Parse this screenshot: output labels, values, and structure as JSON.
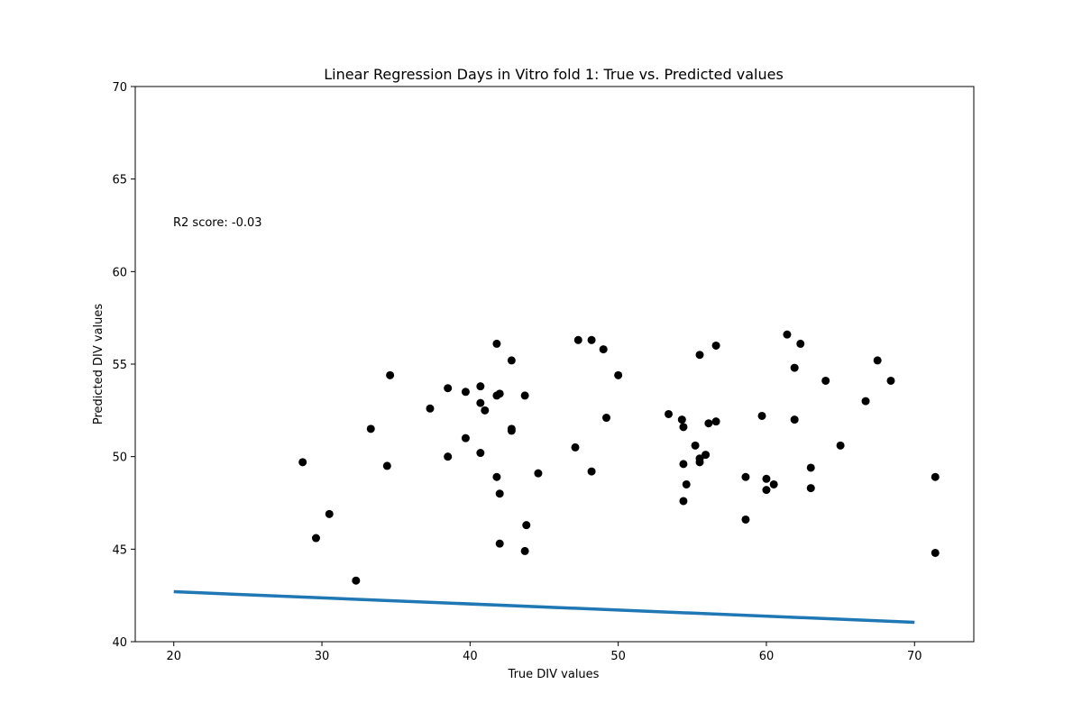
{
  "chart_data": {
    "type": "scatter",
    "title": "Linear Regression Days in Vitro fold 1: True vs. Predicted values",
    "xlabel": "True DIV values",
    "ylabel": "Predicted DIV values",
    "xlim": [
      17.4,
      74.0
    ],
    "ylim": [
      40,
      70
    ],
    "xticks": [
      "20",
      "30",
      "40",
      "50",
      "60",
      "70"
    ],
    "yticks": [
      "40",
      "45",
      "50",
      "55",
      "60",
      "65",
      "70"
    ],
    "grid": false,
    "annotation": "R2 score: -0.03",
    "point_color": "#000000",
    "line_color": "#1f77b4",
    "points": [
      [
        28.7,
        49.7
      ],
      [
        29.6,
        45.6
      ],
      [
        30.5,
        46.9
      ],
      [
        32.3,
        43.3
      ],
      [
        33.3,
        51.5
      ],
      [
        34.4,
        49.5
      ],
      [
        34.6,
        54.4
      ],
      [
        37.3,
        52.6
      ],
      [
        38.5,
        53.7
      ],
      [
        38.5,
        50.0
      ],
      [
        39.7,
        53.5
      ],
      [
        39.7,
        51.0
      ],
      [
        40.7,
        53.8
      ],
      [
        40.7,
        52.9
      ],
      [
        40.7,
        50.2
      ],
      [
        41.0,
        52.5
      ],
      [
        41.8,
        56.1
      ],
      [
        41.8,
        53.3
      ],
      [
        42.0,
        53.4
      ],
      [
        41.8,
        48.9
      ],
      [
        42.0,
        48.0
      ],
      [
        42.0,
        45.3
      ],
      [
        42.8,
        55.2
      ],
      [
        42.8,
        51.5
      ],
      [
        42.8,
        51.4
      ],
      [
        43.7,
        53.3
      ],
      [
        43.8,
        46.3
      ],
      [
        43.7,
        44.9
      ],
      [
        44.6,
        49.1
      ],
      [
        47.1,
        50.5
      ],
      [
        47.3,
        56.3
      ],
      [
        48.2,
        56.3
      ],
      [
        48.2,
        49.2
      ],
      [
        49.0,
        55.8
      ],
      [
        49.2,
        52.1
      ],
      [
        50.0,
        54.4
      ],
      [
        53.4,
        52.3
      ],
      [
        54.3,
        52.0
      ],
      [
        54.4,
        51.6
      ],
      [
        54.4,
        49.6
      ],
      [
        54.6,
        48.5
      ],
      [
        54.4,
        47.6
      ],
      [
        55.2,
        50.6
      ],
      [
        55.5,
        55.5
      ],
      [
        55.5,
        49.9
      ],
      [
        55.5,
        49.7
      ],
      [
        55.9,
        50.1
      ],
      [
        56.1,
        51.8
      ],
      [
        56.6,
        56.0
      ],
      [
        56.6,
        51.9
      ],
      [
        58.6,
        48.9
      ],
      [
        58.6,
        46.6
      ],
      [
        59.7,
        52.2
      ],
      [
        60.0,
        48.8
      ],
      [
        60.0,
        48.2
      ],
      [
        60.5,
        48.5
      ],
      [
        61.4,
        56.6
      ],
      [
        61.9,
        54.8
      ],
      [
        61.9,
        52.0
      ],
      [
        62.3,
        56.1
      ],
      [
        63.0,
        49.4
      ],
      [
        63.0,
        48.3
      ],
      [
        64.0,
        54.1
      ],
      [
        65.0,
        50.6
      ],
      [
        66.7,
        53.0
      ],
      [
        67.5,
        55.2
      ],
      [
        68.4,
        54.1
      ],
      [
        71.4,
        48.9
      ],
      [
        71.4,
        44.8
      ]
    ],
    "fit_line": {
      "x": [
        20,
        70
      ],
      "y": [
        42.7,
        41.05
      ]
    }
  }
}
